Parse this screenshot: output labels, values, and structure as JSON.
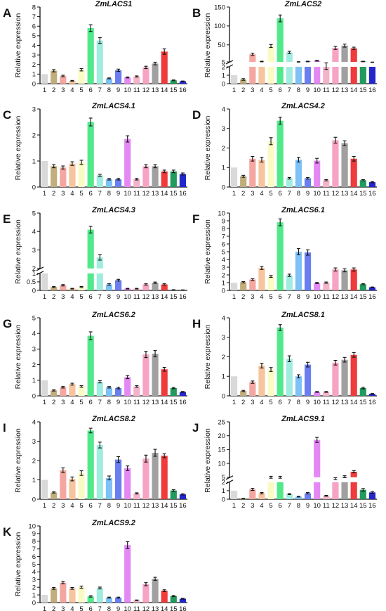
{
  "categories": [
    "1",
    "2",
    "3",
    "4",
    "5",
    "6",
    "7",
    "8",
    "9",
    "10",
    "11",
    "12",
    "13",
    "14",
    "15",
    "16"
  ],
  "palette": [
    "#d9d9d9",
    "#c2ad7c",
    "#f4a6a1",
    "#f6c49d",
    "#fafac4",
    "#52e98b",
    "#a1ece0",
    "#7ec1f7",
    "#6a7ef0",
    "#e489f4",
    "#f4b3c8",
    "#f8a3c3",
    "#a0a0a0",
    "#ef3b3b",
    "#229b5e",
    "#2327c9"
  ],
  "chart_data": [
    {
      "type": "bar",
      "panel": "A",
      "title": "ZmLACS1",
      "ylabel": "Relative expression",
      "ylim": [
        0,
        8
      ],
      "yticks": [
        0,
        1,
        2,
        3,
        4,
        5,
        6,
        7,
        8
      ],
      "values": [
        1,
        1.35,
        0.8,
        0.3,
        1.45,
        5.8,
        4.5,
        0.55,
        1.4,
        0.65,
        0.75,
        1.7,
        2.1,
        3.35,
        0.35,
        0.25
      ],
      "errors": [
        0,
        0.12,
        0.08,
        0.04,
        0.12,
        0.35,
        0.3,
        0.05,
        0.12,
        0.05,
        0.06,
        0.12,
        0.14,
        0.28,
        0.04,
        0.03
      ]
    },
    {
      "type": "bar",
      "panel": "B",
      "title": "ZmLACS2",
      "ylabel": "Relative expression",
      "broken_axis": true,
      "ylim_lower": [
        0,
        2
      ],
      "ylim_upper": [
        5,
        150
      ],
      "yticks_lower": [
        0,
        1,
        2
      ],
      "yticks_upper": [
        5,
        50,
        100,
        150
      ],
      "values": [
        1,
        0.5,
        25,
        6,
        47,
        120,
        30,
        5,
        6,
        8,
        2,
        42,
        48,
        41,
        6,
        4
      ],
      "errors": [
        0,
        0.1,
        3,
        0.8,
        4,
        9,
        3,
        0.6,
        0.8,
        0.9,
        0.3,
        4,
        4,
        3,
        0.7,
        0.5
      ]
    },
    {
      "type": "bar",
      "panel": "C",
      "title": "ZmLACS4.1",
      "ylabel": "Relative expression",
      "ylim": [
        0,
        3
      ],
      "yticks": [
        0,
        1,
        2,
        3
      ],
      "values": [
        1,
        0.8,
        0.75,
        0.9,
        0.95,
        2.5,
        0.45,
        0.3,
        0.3,
        1.85,
        0.3,
        0.8,
        0.8,
        0.6,
        0.6,
        0.5
      ],
      "errors": [
        0,
        0.06,
        0.06,
        0.07,
        0.08,
        0.15,
        0.04,
        0.03,
        0.03,
        0.12,
        0.03,
        0.06,
        0.06,
        0.05,
        0.05,
        0.04
      ]
    },
    {
      "type": "bar",
      "panel": "D",
      "title": "ZmLACS4.2",
      "ylabel": "Relative expression",
      "ylim": [
        0,
        4
      ],
      "yticks": [
        0,
        1,
        2,
        3,
        4
      ],
      "values": [
        1,
        0.55,
        1.45,
        1.4,
        2.35,
        3.4,
        0.45,
        1.4,
        0.45,
        1.35,
        0.35,
        2.4,
        2.25,
        1.45,
        0.35,
        0.25
      ],
      "errors": [
        0,
        0.05,
        0.12,
        0.12,
        0.18,
        0.18,
        0.04,
        0.12,
        0.04,
        0.12,
        0.03,
        0.15,
        0.12,
        0.12,
        0.03,
        0.03
      ]
    },
    {
      "type": "bar",
      "panel": "E",
      "title": "ZmLACS4.3",
      "ylabel": "Relative expression",
      "broken_axis": true,
      "ylim_lower": [
        0,
        1
      ],
      "ylim_upper": [
        2,
        5
      ],
      "yticks_lower": [
        0,
        0.5,
        1
      ],
      "yticks_upper": [
        2,
        3,
        4,
        5
      ],
      "values": [
        1,
        0.2,
        0.3,
        0.1,
        0.2,
        4.1,
        2.6,
        0.35,
        0.6,
        0.1,
        0.1,
        0.35,
        0.45,
        0.35,
        0.03,
        0.02
      ],
      "errors": [
        0,
        0.03,
        0.04,
        0.02,
        0.03,
        0.18,
        0.15,
        0.04,
        0.05,
        0.02,
        0.02,
        0.04,
        0.04,
        0.04,
        0.01,
        0.01
      ]
    },
    {
      "type": "bar",
      "panel": "F",
      "title": "ZmLACS6.1",
      "ylabel": "Relative expression",
      "ylim": [
        0,
        10
      ],
      "yticks": [
        0,
        1,
        2,
        3,
        4,
        5,
        6,
        7,
        8,
        9,
        10
      ],
      "values": [
        1,
        1.05,
        1.4,
        2.9,
        1.8,
        8.8,
        1.95,
        5,
        4.9,
        0.95,
        1,
        2.7,
        2.6,
        2.7,
        0.8,
        0.4
      ],
      "errors": [
        0,
        0.08,
        0.1,
        0.2,
        0.12,
        0.45,
        0.15,
        0.4,
        0.35,
        0.08,
        0.08,
        0.2,
        0.2,
        0.2,
        0.07,
        0.04
      ]
    },
    {
      "type": "bar",
      "panel": "G",
      "title": "ZmLACS6.2",
      "ylabel": "Relative expression",
      "ylim": [
        0,
        5
      ],
      "yticks": [
        0,
        1,
        2,
        3,
        4,
        5
      ],
      "values": [
        1,
        0.35,
        0.55,
        0.75,
        0.6,
        3.85,
        0.9,
        0.55,
        0.5,
        1.2,
        0.6,
        2.65,
        2.7,
        1.7,
        0.5,
        0.25
      ],
      "errors": [
        0,
        0.04,
        0.05,
        0.06,
        0.05,
        0.25,
        0.07,
        0.05,
        0.05,
        0.1,
        0.05,
        0.2,
        0.2,
        0.12,
        0.04,
        0.03
      ]
    },
    {
      "type": "bar",
      "panel": "H",
      "title": "ZmLACS8.1",
      "ylabel": "Relative expression",
      "ylim": [
        0,
        4
      ],
      "yticks": [
        0,
        1,
        2,
        3,
        4
      ],
      "values": [
        1,
        0.25,
        0.7,
        1.55,
        1.35,
        3.5,
        1.9,
        1,
        1.6,
        0.2,
        0.2,
        1.7,
        1.85,
        2.1,
        0.4,
        0.1
      ],
      "errors": [
        0,
        0.03,
        0.06,
        0.12,
        0.1,
        0.15,
        0.15,
        0.08,
        0.12,
        0.02,
        0.02,
        0.12,
        0.12,
        0.12,
        0.04,
        0.02
      ]
    },
    {
      "type": "bar",
      "panel": "I",
      "title": "ZmLACS8.2",
      "ylabel": "Relative expression",
      "ylim": [
        0,
        4
      ],
      "yticks": [
        0,
        1,
        2,
        3,
        4
      ],
      "values": [
        1,
        0.35,
        1.5,
        1.05,
        1.35,
        3.55,
        2.8,
        1.1,
        2.05,
        1.6,
        0.3,
        2.1,
        2.4,
        2.25,
        0.45,
        0.25
      ],
      "errors": [
        0,
        0.03,
        0.12,
        0.1,
        0.12,
        0.12,
        0.15,
        0.1,
        0.15,
        0.12,
        0.03,
        0.18,
        0.18,
        0.1,
        0.04,
        0.03
      ]
    },
    {
      "type": "bar",
      "panel": "J",
      "title": "ZmLACS9.1",
      "ylabel": "Relative expression",
      "broken_axis": true,
      "ylim_lower": [
        0,
        2
      ],
      "ylim_upper": [
        5,
        25
      ],
      "yticks_lower": [
        0,
        1,
        2
      ],
      "yticks_upper": [
        5,
        10,
        15,
        20,
        25
      ],
      "values": [
        1,
        0.1,
        1.15,
        0.7,
        5,
        5,
        0.6,
        0.3,
        0.7,
        18.5,
        0.4,
        4.5,
        5.2,
        7,
        1.1,
        0.8
      ],
      "errors": [
        0,
        0.02,
        0.12,
        0.08,
        0.35,
        0.35,
        0.06,
        0.04,
        0.08,
        0.9,
        0.05,
        0.35,
        0.35,
        0.4,
        0.15,
        0.1
      ]
    },
    {
      "type": "bar",
      "panel": "K",
      "title": "ZmLACS9.2",
      "ylabel": "Relative expression",
      "ylim": [
        0,
        10
      ],
      "yticks": [
        0,
        1,
        2,
        3,
        4,
        5,
        6,
        7,
        8,
        9,
        10
      ],
      "values": [
        1,
        1.85,
        2.6,
        1.85,
        2,
        0.8,
        1.9,
        0.65,
        0.65,
        7.5,
        0.3,
        2.4,
        3.1,
        1.55,
        0.85,
        0.5
      ],
      "errors": [
        0,
        0.12,
        0.15,
        0.12,
        0.15,
        0.08,
        0.12,
        0.06,
        0.06,
        0.45,
        0.04,
        0.2,
        0.2,
        0.12,
        0.08,
        0.05
      ]
    }
  ]
}
